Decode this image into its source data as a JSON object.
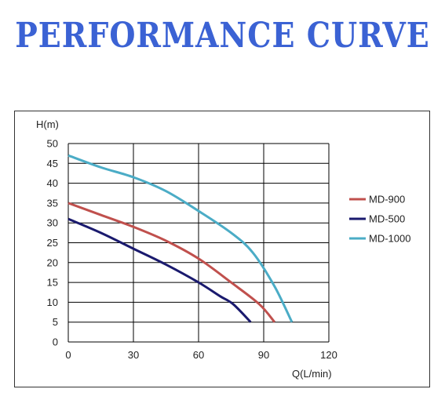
{
  "header": {
    "title": "PERFORMANCE CURVE"
  },
  "colors": {
    "title": "#3b62d4",
    "md900": "#c0504d",
    "md500": "#1a1a6e",
    "md1000": "#4bacc6"
  },
  "chart_data": {
    "type": "line",
    "xlabel": "Q(L/min)",
    "ylabel": "H(m)",
    "xlim": [
      0,
      120
    ],
    "ylim": [
      0,
      50
    ],
    "xticks": [
      0,
      30,
      60,
      90,
      120
    ],
    "yticks": [
      0,
      5,
      10,
      15,
      20,
      25,
      30,
      35,
      40,
      45,
      50
    ],
    "grid": true,
    "legend_position": "right",
    "series": [
      {
        "name": "MD-900",
        "color": "#c0504d",
        "x": [
          0,
          15,
          30,
          45,
          60,
          75,
          88,
          95
        ],
        "y": [
          35,
          32,
          29,
          25.5,
          21,
          15,
          9.5,
          5
        ]
      },
      {
        "name": "MD-500",
        "color": "#1a1a6e",
        "x": [
          0,
          15,
          30,
          45,
          60,
          70,
          76,
          84
        ],
        "y": [
          31,
          27.5,
          23.5,
          19.5,
          15,
          11.5,
          9.5,
          5
        ]
      },
      {
        "name": "MD-1000",
        "color": "#4bacc6",
        "x": [
          0,
          15,
          30,
          45,
          60,
          75,
          85,
          95,
          103
        ],
        "y": [
          47,
          44,
          41.5,
          38,
          33,
          27.5,
          22.5,
          14,
          5
        ]
      }
    ]
  }
}
